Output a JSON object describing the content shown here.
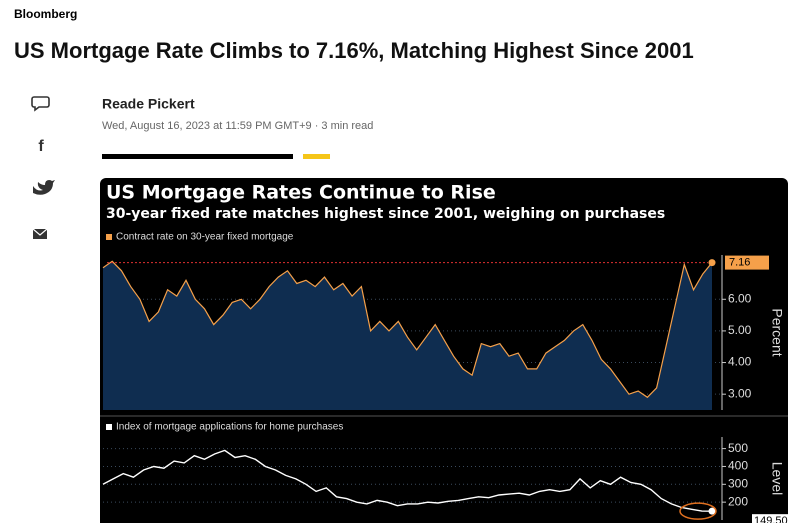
{
  "header": {
    "brand": "Bloomberg",
    "headline": "US Mortgage Rate Climbs to 7.16%, Matching Highest Since 2001"
  },
  "byline": {
    "author": "Reade Pickert",
    "meta": "Wed, August 16, 2023 at 11:59 PM GMT+9 · 3 min read"
  },
  "chart_data": [
    {
      "type": "area",
      "title": "US Mortgage Rates Continue to Rise",
      "subtitle": "30-year fixed rate matches highest since 2001, weighing on purchases",
      "series": [
        {
          "name": "Contract rate on 30-year fixed mortgage",
          "color": "#f5a04a",
          "values": [
            7.0,
            7.2,
            6.9,
            6.4,
            6.0,
            5.3,
            5.6,
            6.3,
            6.1,
            6.6,
            6.0,
            5.7,
            5.2,
            5.5,
            5.9,
            6.0,
            5.7,
            6.0,
            6.4,
            6.7,
            6.9,
            6.5,
            6.6,
            6.4,
            6.7,
            6.3,
            6.5,
            6.1,
            6.4,
            5.0,
            5.3,
            5.0,
            5.3,
            4.8,
            4.4,
            4.8,
            5.2,
            4.7,
            4.2,
            3.8,
            3.6,
            4.6,
            4.5,
            4.6,
            4.2,
            4.3,
            3.8,
            3.8,
            4.3,
            4.5,
            4.7,
            5.0,
            5.2,
            4.7,
            4.1,
            3.8,
            3.4,
            3.0,
            3.1,
            2.9,
            3.2,
            4.5,
            5.8,
            7.1,
            6.3,
            6.8,
            7.16
          ]
        }
      ],
      "ylim": [
        2.5,
        7.4
      ],
      "yticks": [
        {
          "value": 3,
          "label": "3.00"
        },
        {
          "value": 4,
          "label": "4.00"
        },
        {
          "value": 5,
          "label": "5.00"
        },
        {
          "value": 6,
          "label": "6.00"
        }
      ],
      "y_label": "Percent",
      "fill": "#0f2d50"
    },
    {
      "type": "line",
      "series": [
        {
          "name": "Index of mortgage applications for home purchases",
          "color": "#ffffff",
          "values": [
            300,
            330,
            360,
            340,
            380,
            400,
            390,
            430,
            420,
            460,
            440,
            470,
            490,
            450,
            460,
            440,
            400,
            380,
            350,
            330,
            300,
            260,
            280,
            230,
            220,
            200,
            190,
            210,
            200,
            180,
            190,
            190,
            200,
            195,
            205,
            210,
            220,
            230,
            225,
            240,
            245,
            250,
            240,
            260,
            270,
            260,
            270,
            330,
            280,
            320,
            300,
            340,
            310,
            300,
            270,
            220,
            190,
            170,
            160,
            150,
            149.5
          ],
          "value_labels": [
            null,
            null,
            null,
            null,
            null,
            null,
            null,
            null,
            null,
            null,
            null,
            null,
            null,
            null,
            null,
            null,
            null,
            null,
            null,
            null,
            null,
            null,
            null,
            null,
            null,
            null,
            null,
            null,
            null,
            null,
            null,
            null,
            null,
            null,
            null,
            null,
            null,
            null,
            null,
            null,
            null,
            null,
            null,
            null,
            null,
            null,
            null,
            null,
            null,
            null,
            null,
            null,
            null,
            null,
            null,
            null,
            null,
            null,
            null,
            null,
            "149.50"
          ]
        }
      ],
      "ylim": [
        100,
        565
      ],
      "yticks": [
        200,
        300,
        400,
        500
      ],
      "y_label": "Level"
    }
  ]
}
